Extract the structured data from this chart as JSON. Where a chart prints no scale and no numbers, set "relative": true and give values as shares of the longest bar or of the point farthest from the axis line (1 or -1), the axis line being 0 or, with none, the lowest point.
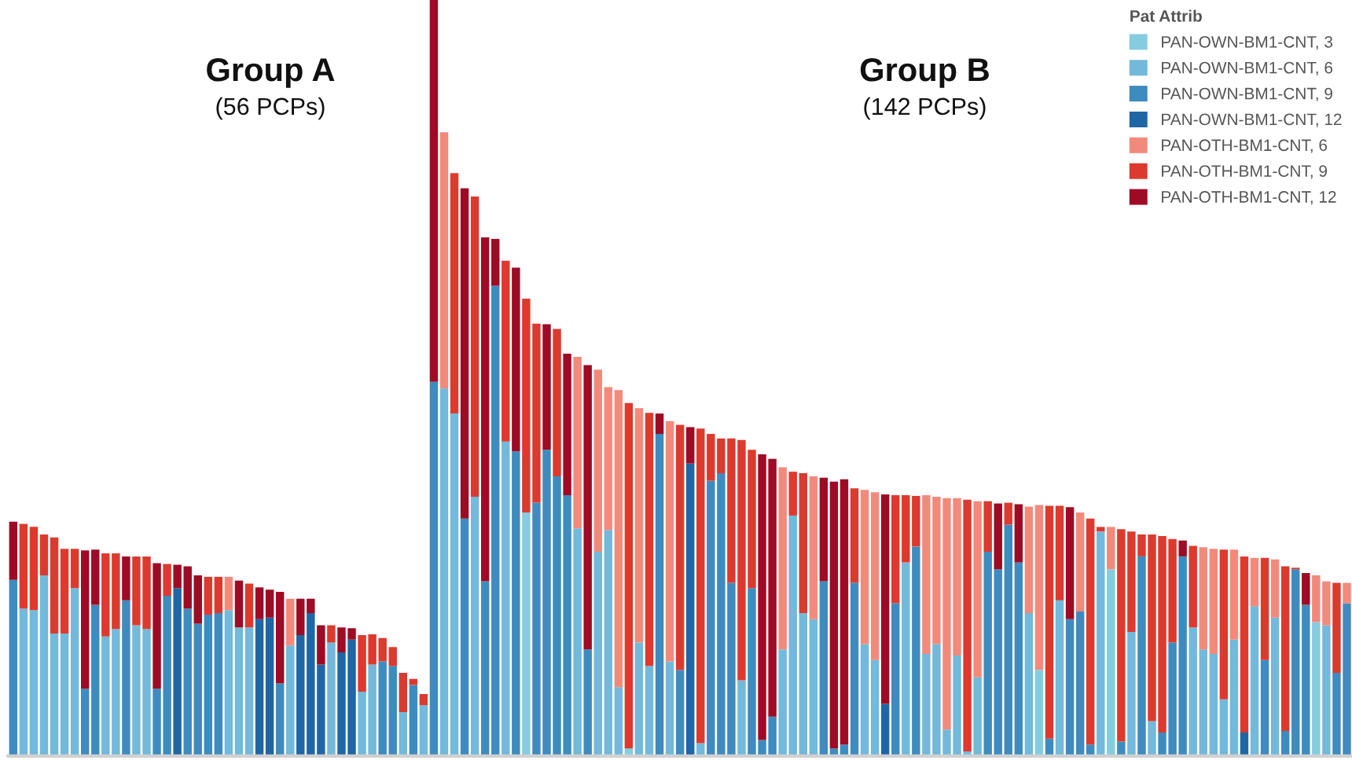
{
  "chart_data": {
    "type": "bar",
    "stacked": true,
    "relative": true,
    "legend": "top right",
    "legend_title": "Pat Attrib",
    "grid": false,
    "annotations": [
      "Group A",
      "(56 PCPs)",
      "Group B",
      "(142 PCPs)"
    ],
    "categories": [
      null,
      null,
      null,
      null,
      null,
      null,
      null,
      null,
      null,
      null,
      null,
      null,
      null,
      null,
      null,
      null,
      null,
      null,
      null,
      null,
      null,
      null,
      null,
      null,
      null,
      null,
      null,
      null,
      null,
      null,
      null,
      null,
      null,
      null,
      null,
      null,
      null,
      null,
      null,
      null,
      null,
      null,
      null,
      null,
      null,
      null,
      null,
      null,
      null,
      null,
      null,
      null,
      null,
      null,
      null,
      null,
      null,
      null,
      null,
      null,
      null,
      null,
      null,
      null,
      null,
      null,
      null,
      null,
      null,
      null,
      null,
      null,
      null,
      null,
      null,
      null,
      null,
      null,
      null,
      null,
      null,
      null,
      null,
      null,
      null,
      null,
      null,
      null,
      null,
      null,
      null,
      null,
      null,
      null,
      null,
      null,
      null,
      null,
      null,
      null,
      null,
      null,
      null,
      null,
      null,
      null,
      null,
      null,
      null,
      null,
      null,
      null,
      null,
      null,
      null,
      null,
      null,
      null,
      null,
      null,
      null,
      null,
      null,
      null,
      null,
      null,
      null,
      null,
      null,
      null,
      null
    ],
    "series": [
      {
        "name": "PAN-OWN-BM1-CNT, 3",
        "color": "#86cce0",
        "values": [
          null,
          null,
          null,
          null,
          null,
          null,
          null,
          null,
          null,
          null,
          null,
          null,
          null,
          null,
          null,
          null,
          null,
          null,
          null,
          null,
          null,
          null,
          null,
          null,
          null,
          null,
          null,
          null,
          null,
          null,
          null,
          null,
          null,
          null,
          null,
          null,
          null,
          null,
          null,
          null,
          null,
          null,
          null,
          null,
          null,
          null,
          null,
          null,
          null,
          null,
          0.322,
          null,
          null,
          null,
          null,
          null,
          null,
          null,
          null,
          null,
          0.01,
          null,
          null,
          null,
          null,
          null,
          null,
          null,
          null,
          null,
          null,
          null,
          null,
          null,
          null,
          null,
          null,
          null,
          null,
          null,
          null,
          null,
          null,
          null,
          null,
          null,
          null,
          null,
          null,
          null,
          null,
          null,
          null,
          null,
          null,
          null,
          null,
          null,
          null,
          null,
          0.114,
          null,
          null,
          null,
          null,
          null,
          null,
          0.247,
          null,
          null,
          null,
          null,
          null,
          null,
          null,
          null,
          null,
          null,
          null,
          null,
          null,
          null,
          null,
          null,
          null,
          null,
          null,
          0.177,
          null,
          null,
          null
        ]
      },
      {
        "name": "PAN-OWN-BM1-CNT, 6",
        "color": "#72b9db",
        "values": [
          null,
          0.195,
          0.193,
          0.239,
          0.162,
          0.162,
          0.222,
          null,
          null,
          0.158,
          0.168,
          null,
          0.173,
          0.168,
          null,
          null,
          null,
          null,
          null,
          null,
          null,
          0.193,
          0.17,
          0.17,
          null,
          null,
          null,
          0.146,
          null,
          null,
          null,
          0.15,
          null,
          null,
          0.085,
          0.121,
          null,
          null,
          0.058,
          null,
          0.067,
          null,
          0.486,
          0.453,
          null,
          0.343,
          null,
          null,
          0.416,
          null,
          null,
          null,
          null,
          null,
          null,
          0.301,
          null,
          0.27,
          0.299,
          0.091,
          null,
          0.15,
          0.119,
          null,
          0.125,
          null,
          null,
          0.017,
          null,
          null,
          null,
          0.1,
          null,
          null,
          null,
          0.141,
          0.318,
          0.189,
          0.181,
          null,
          null,
          null,
          null,
          0.148,
          0.127,
          null,
          null,
          0.256,
          null,
          0.135,
          0.148,
          0.035,
          0.133,
          0.006,
          0.104,
          null,
          null,
          null,
          null,
          0.189,
          null,
          null,
          0.206,
          null,
          null,
          null,
          0.297,
          null,
          null,
          0.164,
          null,
          0.046,
          null,
          null,
          null,
          0.17,
          0.141,
          0.135,
          0.075,
          0.154,
          null,
          0.198,
          null,
          0.183,
          null,
          null,
          null,
          null,
          0.173,
          null,
          null
        ]
      },
      {
        "name": "PAN-OWN-BM1-CNT, 9",
        "color": "#3e8bbf",
        "values": [
          0.233,
          null,
          null,
          null,
          null,
          null,
          null,
          0.089,
          0.2,
          null,
          null,
          0.206,
          null,
          null,
          0.089,
          0.212,
          null,
          0.195,
          0.175,
          0.187,
          0.189,
          null,
          null,
          null,
          null,
          null,
          0.096,
          null,
          null,
          null,
          null,
          null,
          null,
          null,
          null,
          null,
          0.125,
          0.119,
          null,
          0.094,
          null,
          0.495,
          null,
          null,
          0.314,
          null,
          0.231,
          0.622,
          null,
          0.403,
          null,
          0.335,
          0.405,
          0.37,
          0.345,
          null,
          0.141,
          null,
          null,
          null,
          null,
          null,
          null,
          0.426,
          null,
          0.114,
          null,
          null,
          0.364,
          0.374,
          0.229,
          null,
          0.222,
          0.021,
          0.052,
          null,
          null,
          null,
          null,
          0.231,
          0.01,
          0.015,
          0.229,
          null,
          null,
          null,
          0.202,
          null,
          0.277,
          null,
          null,
          null,
          null,
          null,
          null,
          0.27,
          0.247,
          0.306,
          0.256,
          null,
          null,
          0.023,
          null,
          0.181,
          0.191,
          0.015,
          null,
          null,
          0.019,
          null,
          0.264,
          null,
          0.031,
          0.15,
          0.264,
          null,
          null,
          null,
          null,
          null,
          null,
          null,
          0.127,
          null,
          0.033,
          0.247,
          0.2,
          null,
          null,
          0.11,
          0.202
        ]
      },
      {
        "name": "PAN-OWN-BM1-CNT, 12",
        "color": "#1f66a5",
        "values": [
          null,
          null,
          null,
          null,
          null,
          null,
          null,
          null,
          null,
          null,
          null,
          null,
          null,
          null,
          null,
          null,
          0.222,
          null,
          null,
          null,
          null,
          null,
          null,
          null,
          0.181,
          0.183,
          null,
          null,
          0.16,
          0.189,
          0.121,
          null,
          0.137,
          0.154,
          null,
          null,
          null,
          null,
          null,
          null,
          null,
          null,
          null,
          null,
          null,
          null,
          null,
          null,
          null,
          null,
          null,
          null,
          null,
          null,
          null,
          null,
          null,
          null,
          null,
          null,
          null,
          null,
          null,
          null,
          null,
          null,
          0.387,
          null,
          null,
          null,
          null,
          null,
          null,
          null,
          null,
          null,
          null,
          null,
          null,
          null,
          null,
          null,
          null,
          null,
          null,
          0.069,
          null,
          null,
          null,
          null,
          null,
          null,
          null,
          null,
          null,
          null,
          null,
          null,
          null,
          null,
          null,
          null,
          null,
          null,
          null,
          null,
          null,
          null,
          null,
          null,
          null,
          null,
          null,
          null,
          null,
          null,
          null,
          null,
          null,
          null,
          0.031,
          null,
          null,
          null,
          null,
          null,
          null,
          null,
          null,
          null,
          null
        ]
      },
      {
        "name": "PAN-OTH-BM1-CNT, 6",
        "color": "#f28a7b",
        "values": [
          null,
          null,
          null,
          null,
          null,
          null,
          null,
          null,
          null,
          null,
          null,
          null,
          null,
          null,
          null,
          null,
          null,
          null,
          null,
          null,
          null,
          0.044,
          null,
          null,
          null,
          null,
          null,
          0.062,
          null,
          null,
          null,
          null,
          null,
          null,
          null,
          null,
          null,
          null,
          null,
          null,
          null,
          null,
          0.339,
          null,
          null,
          null,
          null,
          null,
          null,
          null,
          null,
          null,
          null,
          null,
          null,
          0.227,
          null,
          0.241,
          0.189,
          0.393,
          null,
          0.31,
          null,
          null,
          0.318,
          null,
          null,
          null,
          null,
          null,
          null,
          null,
          null,
          null,
          null,
          0.241,
          null,
          null,
          0.189,
          null,
          null,
          null,
          null,
          0.204,
          0.222,
          null,
          null,
          null,
          null,
          0.21,
          0.195,
          0.306,
          0.208,
          null,
          0.233,
          null,
          null,
          null,
          null,
          0.141,
          0.218,
          null,
          null,
          null,
          0.131,
          null,
          null,
          0.056,
          null,
          null,
          null,
          null,
          null,
          null,
          null,
          null,
          0.135,
          0.139,
          null,
          0.119,
          null,
          0.064,
          null,
          0.077,
          null,
          null,
          null,
          0.062,
          0.058,
          null,
          0.027
        ]
      },
      {
        "name": "PAN-OTH-BM1-CNT, 9",
        "color": "#dc3a2e",
        "values": [
          null,
          0.112,
          0.11,
          0.054,
          0.127,
          0.112,
          0.052,
          null,
          null,
          0.11,
          0.1,
          null,
          0.091,
          0.096,
          null,
          0.042,
          null,
          null,
          null,
          0.05,
          0.048,
          null,
          null,
          0.058,
          null,
          null,
          null,
          null,
          null,
          null,
          null,
          0.023,
          null,
          null,
          0.075,
          0.04,
          0.031,
          0.025,
          0.052,
          0.008,
          0.015,
          null,
          null,
          0.318,
          null,
          0.397,
          null,
          null,
          0.239,
          null,
          0.283,
          0.237,
          null,
          0.195,
          null,
          null,
          null,
          null,
          null,
          null,
          0.457,
          null,
          0.335,
          null,
          null,
          0.324,
          null,
          0.416,
          0.062,
          0.046,
          0.191,
          0.318,
          0.183,
          null,
          null,
          null,
          0.058,
          0.185,
          null,
          null,
          null,
          null,
          0.125,
          null,
          null,
          null,
          0.143,
          0.089,
          0.067,
          null,
          null,
          null,
          null,
          0.333,
          null,
          0.067,
          null,
          0.029,
          null,
          null,
          null,
          0.308,
          0.125,
          null,
          null,
          0.299,
          0.006,
          null,
          0.281,
          0.133,
          0.029,
          0.247,
          0.26,
          0.137,
          null,
          0.108,
          null,
          null,
          0.198,
          null,
          0.233,
          null,
          0.135,
          null,
          0.218,
          0.002,
          null,
          null,
          null,
          0.119,
          null
        ]
      },
      {
        "name": "PAN-OTH-BM1-CNT, 12",
        "color": "#9d0b25",
        "values": [
          0.077,
          null,
          null,
          null,
          null,
          null,
          null,
          0.183,
          0.073,
          null,
          null,
          0.058,
          null,
          null,
          0.166,
          null,
          0.031,
          0.056,
          0.064,
          null,
          null,
          null,
          0.062,
          null,
          0.042,
          0.037,
          0.121,
          null,
          0.048,
          0.019,
          0.052,
          null,
          0.033,
          0.015,
          null,
          null,
          null,
          null,
          null,
          null,
          null,
          0.505,
          null,
          null,
          0.437,
          null,
          0.455,
          0.062,
          null,
          0.243,
          null,
          null,
          0.166,
          null,
          0.187,
          null,
          0.376,
          null,
          null,
          null,
          null,
          null,
          null,
          0.027,
          null,
          null,
          0.048,
          null,
          null,
          null,
          null,
          null,
          null,
          0.378,
          0.341,
          null,
          null,
          null,
          null,
          0.137,
          0.353,
          0.351,
          null,
          null,
          null,
          0.277,
          null,
          null,
          null,
          null,
          null,
          null,
          null,
          null,
          null,
          null,
          0.087,
          null,
          0.077,
          null,
          null,
          null,
          null,
          0.148,
          null,
          null,
          null,
          null,
          null,
          null,
          null,
          null,
          null,
          null,
          0.021,
          null,
          null,
          null,
          null,
          null,
          null,
          null,
          null,
          null,
          null,
          null,
          0.042,
          null,
          null,
          null,
          null
        ]
      }
    ]
  }
}
